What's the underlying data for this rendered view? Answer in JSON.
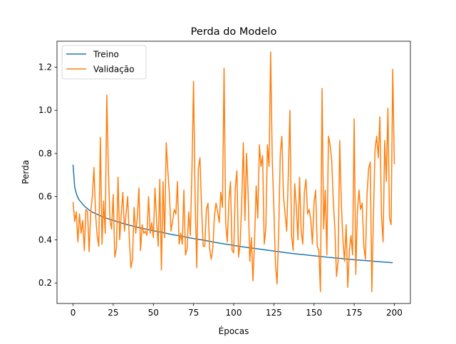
{
  "chart_data": {
    "type": "line",
    "title": "Perda do Modelo",
    "xlabel": "Épocas",
    "ylabel": "Perda",
    "xlim": [
      -10,
      210
    ],
    "ylim": [
      0.105,
      1.32
    ],
    "xticks": [
      0,
      25,
      50,
      75,
      100,
      125,
      150,
      175,
      200
    ],
    "yticks": [
      0.2,
      0.4,
      0.6,
      0.8,
      1.0,
      1.2
    ],
    "grid": false,
    "legend_position": "upper-left",
    "series": [
      {
        "name": "Treino",
        "color": "#1f77b4",
        "points": [
          [
            0,
            0.748
          ],
          [
            1,
            0.645
          ],
          [
            2,
            0.615
          ],
          [
            3,
            0.595
          ],
          [
            4,
            0.583
          ],
          [
            6,
            0.565
          ],
          [
            8,
            0.55
          ],
          [
            10,
            0.538
          ],
          [
            12,
            0.528
          ],
          [
            15,
            0.518
          ],
          [
            18,
            0.508
          ],
          [
            20,
            0.502
          ],
          [
            25,
            0.49
          ],
          [
            30,
            0.478
          ],
          [
            35,
            0.468
          ],
          [
            40,
            0.458
          ],
          [
            45,
            0.45
          ],
          [
            50,
            0.442
          ],
          [
            55,
            0.435
          ],
          [
            60,
            0.427
          ],
          [
            65,
            0.42
          ],
          [
            70,
            0.413
          ],
          [
            75,
            0.406
          ],
          [
            80,
            0.4
          ],
          [
            85,
            0.393
          ],
          [
            90,
            0.386
          ],
          [
            95,
            0.38
          ],
          [
            100,
            0.374
          ],
          [
            105,
            0.368
          ],
          [
            110,
            0.363
          ],
          [
            115,
            0.358
          ],
          [
            120,
            0.353
          ],
          [
            125,
            0.348
          ],
          [
            130,
            0.343
          ],
          [
            135,
            0.338
          ],
          [
            140,
            0.334
          ],
          [
            145,
            0.33
          ],
          [
            150,
            0.326
          ],
          [
            155,
            0.322
          ],
          [
            160,
            0.318
          ],
          [
            165,
            0.315
          ],
          [
            170,
            0.311
          ],
          [
            175,
            0.308
          ],
          [
            180,
            0.305
          ],
          [
            185,
            0.302
          ],
          [
            190,
            0.299
          ],
          [
            195,
            0.296
          ],
          [
            199,
            0.294
          ]
        ]
      },
      {
        "name": "Validação",
        "color": "#ff7f0e",
        "points": [
          [
            0,
            0.575
          ],
          [
            1,
            0.485
          ],
          [
            2,
            0.53
          ],
          [
            3,
            0.39
          ],
          [
            4,
            0.52
          ],
          [
            5,
            0.43
          ],
          [
            6,
            0.49
          ],
          [
            7,
            0.35
          ],
          [
            8,
            0.54
          ],
          [
            9,
            0.53
          ],
          [
            10,
            0.345
          ],
          [
            11,
            0.53
          ],
          [
            12,
            0.6
          ],
          [
            13,
            0.735
          ],
          [
            14,
            0.52
          ],
          [
            15,
            0.42
          ],
          [
            16,
            0.37
          ],
          [
            17,
            0.875
          ],
          [
            18,
            0.38
          ],
          [
            19,
            0.58
          ],
          [
            20,
            0.43
          ],
          [
            21,
            1.07
          ],
          [
            22,
            0.72
          ],
          [
            23,
            0.49
          ],
          [
            24,
            0.45
          ],
          [
            25,
            0.61
          ],
          [
            26,
            0.32
          ],
          [
            27,
            0.36
          ],
          [
            28,
            0.69
          ],
          [
            29,
            0.4
          ],
          [
            30,
            0.52
          ],
          [
            31,
            0.62
          ],
          [
            32,
            0.44
          ],
          [
            33,
            0.52
          ],
          [
            34,
            0.6
          ],
          [
            35,
            0.41
          ],
          [
            36,
            0.27
          ],
          [
            37,
            0.31
          ],
          [
            38,
            0.55
          ],
          [
            39,
            0.43
          ],
          [
            40,
            0.505
          ],
          [
            41,
            0.64
          ],
          [
            42,
            0.35
          ],
          [
            43,
            0.47
          ],
          [
            44,
            0.43
          ],
          [
            45,
            0.44
          ],
          [
            46,
            0.42
          ],
          [
            47,
            0.6
          ],
          [
            48,
            0.43
          ],
          [
            49,
            0.48
          ],
          [
            50,
            0.41
          ],
          [
            51,
            0.64
          ],
          [
            52,
            0.49
          ],
          [
            53,
            0.37
          ],
          [
            54,
            0.68
          ],
          [
            55,
            0.26
          ],
          [
            56,
            0.67
          ],
          [
            57,
            0.41
          ],
          [
            58,
            0.85
          ],
          [
            59,
            0.72
          ],
          [
            60,
            0.61
          ],
          [
            61,
            0.44
          ],
          [
            62,
            0.49
          ],
          [
            63,
            0.54
          ],
          [
            64,
            0.52
          ],
          [
            65,
            0.67
          ],
          [
            66,
            0.38
          ],
          [
            67,
            0.43
          ],
          [
            68,
            0.38
          ],
          [
            69,
            0.63
          ],
          [
            70,
            0.33
          ],
          [
            71,
            0.36
          ],
          [
            72,
            0.53
          ],
          [
            73,
            0.42
          ],
          [
            74,
            0.72
          ],
          [
            75,
            1.135
          ],
          [
            76,
            0.58
          ],
          [
            77,
            0.27
          ],
          [
            78,
            0.73
          ],
          [
            79,
            0.78
          ],
          [
            80,
            0.55
          ],
          [
            81,
            0.37
          ],
          [
            82,
            0.37
          ],
          [
            83,
            0.54
          ],
          [
            84,
            0.57
          ],
          [
            85,
            0.36
          ],
          [
            86,
            0.31
          ],
          [
            87,
            0.36
          ],
          [
            88,
            0.51
          ],
          [
            89,
            0.57
          ],
          [
            90,
            0.53
          ],
          [
            91,
            0.48
          ],
          [
            92,
            0.62
          ],
          [
            93,
            0.55
          ],
          [
            94,
            1.195
          ],
          [
            95,
            0.48
          ],
          [
            96,
            0.39
          ],
          [
            97,
            0.58
          ],
          [
            98,
            0.67
          ],
          [
            99,
            0.35
          ],
          [
            100,
            0.34
          ],
          [
            101,
            0.64
          ],
          [
            102,
            0.72
          ],
          [
            103,
            0.32
          ],
          [
            104,
            0.38
          ],
          [
            105,
            0.57
          ],
          [
            106,
            0.85
          ],
          [
            107,
            0.49
          ],
          [
            108,
            0.8
          ],
          [
            109,
            0.61
          ],
          [
            110,
            0.3
          ],
          [
            111,
            0.41
          ],
          [
            112,
            0.21
          ],
          [
            113,
            0.4
          ],
          [
            114,
            0.65
          ],
          [
            115,
            0.5
          ],
          [
            116,
            0.84
          ],
          [
            117,
            0.74
          ],
          [
            118,
            0.79
          ],
          [
            119,
            0.38
          ],
          [
            120,
            0.45
          ],
          [
            121,
            0.84
          ],
          [
            122,
            0.74
          ],
          [
            123,
            1.27
          ],
          [
            124,
            0.77
          ],
          [
            125,
            0.55
          ],
          [
            126,
            0.29
          ],
          [
            127,
            0.195
          ],
          [
            128,
            0.43
          ],
          [
            129,
            0.8
          ],
          [
            130,
            0.88
          ],
          [
            131,
            0.6
          ],
          [
            132,
            0.52
          ],
          [
            133,
            0.44
          ],
          [
            134,
            0.7
          ],
          [
            135,
            1.0
          ],
          [
            136,
            0.42
          ],
          [
            137,
            0.35
          ],
          [
            138,
            0.66
          ],
          [
            139,
            0.55
          ],
          [
            140,
            0.4
          ],
          [
            141,
            0.69
          ],
          [
            142,
            0.44
          ],
          [
            143,
            0.38
          ],
          [
            144,
            0.62
          ],
          [
            145,
            0.68
          ],
          [
            146,
            0.52
          ],
          [
            147,
            0.54
          ],
          [
            148,
            0.49
          ],
          [
            149,
            0.38
          ],
          [
            150,
            0.57
          ],
          [
            151,
            0.63
          ],
          [
            152,
            0.37
          ],
          [
            153,
            0.35
          ],
          [
            154,
            0.16
          ],
          [
            155,
            1.1
          ],
          [
            156,
            0.45
          ],
          [
            157,
            0.63
          ],
          [
            158,
            0.33
          ],
          [
            159,
            0.88
          ],
          [
            160,
            0.84
          ],
          [
            161,
            0.77
          ],
          [
            162,
            0.58
          ],
          [
            163,
            0.45
          ],
          [
            164,
            0.23
          ],
          [
            165,
            0.3
          ],
          [
            166,
            0.86
          ],
          [
            167,
            0.57
          ],
          [
            168,
            0.4
          ],
          [
            169,
            0.3
          ],
          [
            170,
            0.47
          ],
          [
            171,
            0.18
          ],
          [
            172,
            0.35
          ],
          [
            173,
            0.42
          ],
          [
            174,
            0.33
          ],
          [
            175,
            0.96
          ],
          [
            176,
            0.24
          ],
          [
            177,
            0.53
          ],
          [
            178,
            0.63
          ],
          [
            179,
            0.54
          ],
          [
            180,
            0.57
          ],
          [
            181,
            0.37
          ],
          [
            182,
            0.31
          ],
          [
            183,
            0.61
          ],
          [
            184,
            0.73
          ],
          [
            185,
            0.76
          ],
          [
            186,
            0.16
          ],
          [
            187,
            0.52
          ],
          [
            188,
            0.82
          ],
          [
            189,
            0.88
          ],
          [
            190,
            0.78
          ],
          [
            191,
            0.97
          ],
          [
            192,
            0.51
          ],
          [
            193,
            0.39
          ],
          [
            194,
            0.86
          ],
          [
            195,
            0.67
          ],
          [
            196,
            1.01
          ],
          [
            197,
            0.5
          ],
          [
            198,
            0.47
          ],
          [
            199,
            1.19
          ],
          [
            200,
            0.75
          ]
        ]
      }
    ]
  }
}
